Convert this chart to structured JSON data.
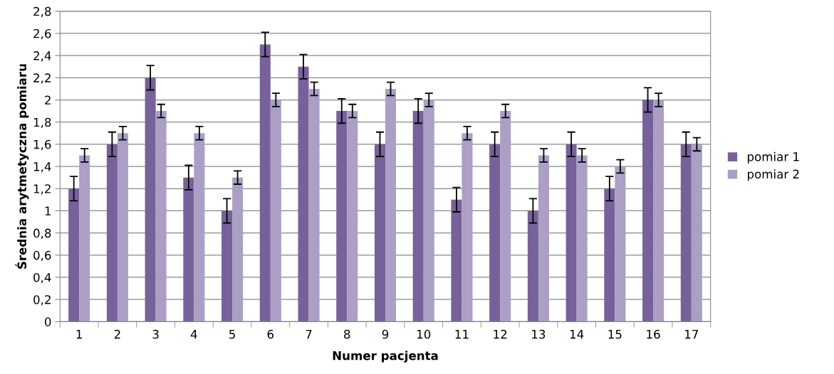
{
  "chart_data": {
    "type": "bar",
    "xlabel": "Numer pacjenta",
    "ylabel": "Średnia arytmetyczna pomiaru",
    "categories": [
      "1",
      "2",
      "3",
      "4",
      "5",
      "6",
      "7",
      "8",
      "9",
      "10",
      "11",
      "12",
      "13",
      "14",
      "15",
      "16",
      "17"
    ],
    "series": [
      {
        "name": "pomiar 1",
        "color": "#77619a",
        "values": [
          1.2,
          1.6,
          2.2,
          1.3,
          1.0,
          2.5,
          2.3,
          1.9,
          1.6,
          1.9,
          1.1,
          1.6,
          1.0,
          1.6,
          1.2,
          2.0,
          1.6
        ],
        "errors": [
          0.11,
          0.11,
          0.11,
          0.11,
          0.11,
          0.11,
          0.11,
          0.11,
          0.11,
          0.11,
          0.11,
          0.11,
          0.11,
          0.11,
          0.11,
          0.11,
          0.11
        ]
      },
      {
        "name": "pomiar 2",
        "color": "#ab9fc5",
        "values": [
          1.5,
          1.7,
          1.9,
          1.7,
          1.3,
          2.0,
          2.1,
          1.9,
          2.1,
          2.0,
          1.7,
          1.9,
          1.5,
          1.5,
          1.4,
          2.0,
          1.6
        ],
        "errors": [
          0.06,
          0.06,
          0.06,
          0.06,
          0.06,
          0.06,
          0.06,
          0.06,
          0.06,
          0.06,
          0.06,
          0.06,
          0.06,
          0.06,
          0.06,
          0.06,
          0.06
        ]
      }
    ],
    "ylim": [
      0,
      2.8
    ],
    "yticks": [
      0,
      {
        "value": 0.2,
        "label": "0,2"
      },
      {
        "value": 0.4,
        "label": "0,4"
      },
      {
        "value": 0.6,
        "label": "0,6"
      },
      {
        "value": 0.8,
        "label": "0,8"
      },
      1,
      {
        "value": 1.2,
        "label": "1,2"
      },
      {
        "value": 1.4,
        "label": "1,4"
      },
      {
        "value": 1.6,
        "label": "1,6"
      },
      {
        "value": 1.8,
        "label": "1,8"
      },
      2,
      {
        "value": 2.2,
        "label": "2,2"
      },
      {
        "value": 2.4,
        "label": "2,4"
      },
      {
        "value": 2.6,
        "label": "2,6"
      },
      {
        "value": 2.8,
        "label": "2,8"
      }
    ],
    "grid": "y",
    "legend": "right"
  }
}
